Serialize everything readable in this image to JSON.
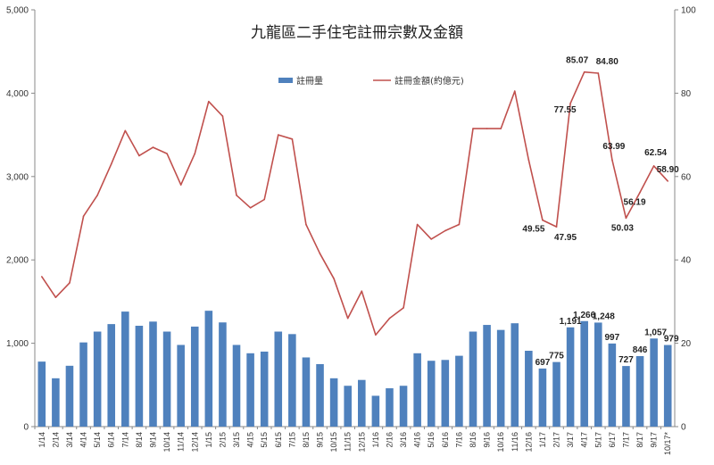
{
  "chart_data": {
    "type": "bar",
    "title": "九龍區二手住宅註冊宗數及金額",
    "categories": [
      "1/14",
      "2/14",
      "3/14",
      "4/14",
      "5/14",
      "6/14",
      "7/14",
      "8/14",
      "9/14",
      "10/14",
      "11/14",
      "12/14",
      "1/15",
      "2/15",
      "3/15",
      "4/15",
      "5/15",
      "6/15",
      "7/15",
      "8/15",
      "9/15",
      "10/15",
      "11/15",
      "12/15",
      "1/16",
      "2/16",
      "3/16",
      "4/16",
      "5/16",
      "6/16",
      "7/16",
      "8/16",
      "9/16",
      "10/16",
      "11/16",
      "12/16",
      "1/17",
      "2/17",
      "3/17",
      "4/17",
      "5/17",
      "6/17",
      "7/17",
      "8/17",
      "9/17",
      "10/17*"
    ],
    "left_axis": {
      "min": 0,
      "max": 5000,
      "ticks": [
        "0",
        "1,000",
        "2,000",
        "3,000",
        "4,000",
        "5,000"
      ],
      "tick_values": [
        0,
        1000,
        2000,
        3000,
        4000,
        5000
      ]
    },
    "right_axis": {
      "min": 0,
      "max": 100,
      "ticks": [
        "0",
        "20",
        "40",
        "60",
        "80",
        "100"
      ],
      "tick_values": [
        0,
        20,
        40,
        60,
        80,
        100
      ]
    },
    "grid": false,
    "legend_position": "top-center",
    "colors": {
      "bars": "#4f81bd",
      "line": "#c0504d",
      "axis": "#888888"
    },
    "series": [
      {
        "name": "註冊量",
        "kind": "bar",
        "axis": "left",
        "values": [
          780,
          580,
          730,
          1010,
          1140,
          1230,
          1380,
          1210,
          1260,
          1140,
          980,
          1200,
          1390,
          1250,
          980,
          880,
          900,
          1140,
          1110,
          830,
          750,
          580,
          490,
          560,
          370,
          460,
          490,
          880,
          790,
          800,
          850,
          1140,
          1220,
          1160,
          1240,
          910,
          697,
          775,
          1191,
          1266,
          1248,
          997,
          727,
          846,
          1057,
          979
        ],
        "labels": {
          "36": "697",
          "37": "775",
          "38": "1,191",
          "39": "1,266",
          "40": "1,248",
          "41": "997",
          "42": "727",
          "43": "846",
          "44": "1,057",
          "45": "979"
        }
      },
      {
        "name": "註冊金額(約億元)",
        "kind": "line",
        "axis": "right",
        "values": [
          36,
          31,
          34.5,
          50.5,
          55.5,
          63,
          71,
          65,
          67,
          65.5,
          58,
          65.5,
          78,
          74.5,
          55.5,
          52.5,
          54.5,
          70,
          69,
          48.5,
          41.5,
          35.5,
          26,
          32.5,
          22,
          26,
          28.5,
          48.5,
          45,
          47,
          48.5,
          71.5,
          71.5,
          71.5,
          80.5,
          64,
          49.55,
          47.95,
          77.55,
          85.07,
          84.8,
          63.99,
          50.03,
          56.19,
          62.54,
          58.9
        ],
        "labels": {
          "36": "49.55",
          "37": "47.95",
          "38": "77.55",
          "39": "85.07",
          "40": "84.80",
          "41": "63.99",
          "42": "50.03",
          "43": "56.19",
          "44": "62.54",
          "45": "58.90"
        }
      }
    ]
  }
}
